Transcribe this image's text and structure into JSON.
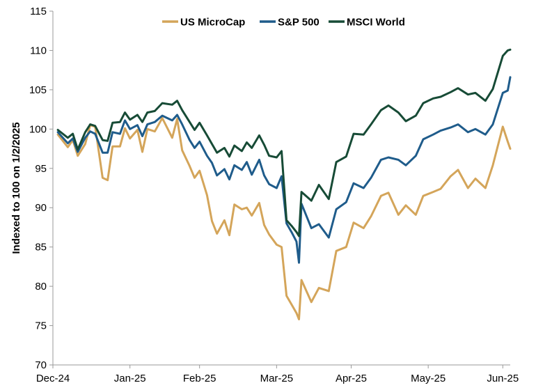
{
  "chart_data": {
    "type": "line",
    "title": "",
    "xlabel": "",
    "ylabel": "Indexed to 100 on 1/2/2025",
    "ylim": [
      70,
      115
    ],
    "yticks": [
      70,
      75,
      80,
      85,
      90,
      95,
      100,
      105,
      110,
      115
    ],
    "xlim": [
      "2024-12-31",
      "2025-07-03"
    ],
    "xtick_labels": [
      "Dec-24",
      "Jan-25",
      "Feb-25",
      "Mar-25",
      "Apr-25",
      "May-25",
      "Jun-25"
    ],
    "xtick_dates": [
      "2024-12-31",
      "2025-01-31",
      "2025-02-28",
      "2025-03-31",
      "2025-04-30",
      "2025-05-31",
      "2025-06-30"
    ],
    "grid": false,
    "legend_position": "top",
    "series": [
      {
        "name": "US MicroCap",
        "color": "#D4A55A",
        "x": [
          "2025-01-02",
          "2025-01-06",
          "2025-01-08",
          "2025-01-10",
          "2025-01-13",
          "2025-01-15",
          "2025-01-17",
          "2025-01-20",
          "2025-01-22",
          "2025-01-24",
          "2025-01-27",
          "2025-01-29",
          "2025-01-31",
          "2025-02-03",
          "2025-02-05",
          "2025-02-07",
          "2025-02-10",
          "2025-02-13",
          "2025-02-17",
          "2025-02-19",
          "2025-02-21",
          "2025-02-24",
          "2025-02-26",
          "2025-02-28",
          "2025-03-03",
          "2025-03-05",
          "2025-03-07",
          "2025-03-10",
          "2025-03-12",
          "2025-03-14",
          "2025-03-17",
          "2025-03-19",
          "2025-03-21",
          "2025-03-24",
          "2025-03-26",
          "2025-03-28",
          "2025-03-31",
          "2025-04-02",
          "2025-04-04",
          "2025-04-06",
          "2025-04-08",
          "2025-04-09",
          "2025-04-10",
          "2025-04-14",
          "2025-04-17",
          "2025-04-21",
          "2025-04-24",
          "2025-04-28",
          "2025-05-01",
          "2025-05-05",
          "2025-05-08",
          "2025-05-12",
          "2025-05-15",
          "2025-05-19",
          "2025-05-22",
          "2025-05-26",
          "2025-05-29",
          "2025-06-02",
          "2025-06-05",
          "2025-06-09",
          "2025-06-12",
          "2025-06-16",
          "2025-06-19",
          "2025-06-23",
          "2025-06-26",
          "2025-06-30",
          "2025-07-02",
          "2025-07-03"
        ],
        "values": [
          99.3,
          97.7,
          98.6,
          96.6,
          98.1,
          100.5,
          100.3,
          93.8,
          93.5,
          97.8,
          97.8,
          100.1,
          98.8,
          99.9,
          97.1,
          100.0,
          99.7,
          101.4,
          98.9,
          101.3,
          97.3,
          95.3,
          93.8,
          94.7,
          91.6,
          88.3,
          86.7,
          88.4,
          86.5,
          90.4,
          89.8,
          90.0,
          89.0,
          90.6,
          87.8,
          86.6,
          85.3,
          85.0,
          78.8,
          77.7,
          76.6,
          75.8,
          80.8,
          78.0,
          79.8,
          79.4,
          84.5,
          85.0,
          88.1,
          87.4,
          88.9,
          91.5,
          91.9,
          89.1,
          90.3,
          89.1,
          91.5,
          92.0,
          92.4,
          94.0,
          94.8,
          92.5,
          93.7,
          92.5,
          95.4,
          100.3,
          98.4,
          97.5
        ]
      },
      {
        "name": "S&P 500",
        "color": "#1F5C8B",
        "x": [
          "2025-01-02",
          "2025-01-06",
          "2025-01-08",
          "2025-01-10",
          "2025-01-13",
          "2025-01-15",
          "2025-01-17",
          "2025-01-20",
          "2025-01-22",
          "2025-01-24",
          "2025-01-27",
          "2025-01-29",
          "2025-01-31",
          "2025-02-03",
          "2025-02-05",
          "2025-02-07",
          "2025-02-10",
          "2025-02-13",
          "2025-02-17",
          "2025-02-19",
          "2025-02-21",
          "2025-02-24",
          "2025-02-26",
          "2025-02-28",
          "2025-03-03",
          "2025-03-05",
          "2025-03-07",
          "2025-03-10",
          "2025-03-12",
          "2025-03-14",
          "2025-03-17",
          "2025-03-19",
          "2025-03-21",
          "2025-03-24",
          "2025-03-26",
          "2025-03-28",
          "2025-03-31",
          "2025-04-02",
          "2025-04-04",
          "2025-04-06",
          "2025-04-08",
          "2025-04-09",
          "2025-04-10",
          "2025-04-14",
          "2025-04-17",
          "2025-04-21",
          "2025-04-24",
          "2025-04-28",
          "2025-05-01",
          "2025-05-05",
          "2025-05-08",
          "2025-05-12",
          "2025-05-15",
          "2025-05-19",
          "2025-05-22",
          "2025-05-26",
          "2025-05-29",
          "2025-06-02",
          "2025-06-05",
          "2025-06-09",
          "2025-06-12",
          "2025-06-16",
          "2025-06-19",
          "2025-06-23",
          "2025-06-26",
          "2025-06-30",
          "2025-07-02",
          "2025-07-03"
        ],
        "values": [
          99.6,
          98.2,
          98.8,
          97.1,
          98.9,
          99.7,
          99.4,
          97.0,
          97.0,
          99.6,
          99.4,
          101.1,
          100.0,
          100.5,
          99.1,
          100.6,
          100.9,
          101.7,
          101.1,
          101.8,
          100.6,
          98.6,
          97.6,
          98.4,
          96.6,
          95.7,
          94.1,
          94.9,
          93.6,
          95.4,
          94.8,
          95.8,
          94.2,
          96.1,
          94.1,
          93.0,
          92.5,
          94.0,
          88.0,
          86.9,
          85.7,
          83.0,
          90.5,
          87.4,
          87.9,
          86.2,
          89.8,
          90.7,
          93.1,
          92.5,
          93.8,
          96.1,
          96.4,
          96.1,
          95.4,
          96.6,
          98.7,
          99.3,
          99.8,
          100.2,
          100.6,
          99.6,
          100.0,
          99.3,
          100.6,
          104.6,
          104.9,
          106.6
        ]
      },
      {
        "name": "MSCI World",
        "color": "#174B36",
        "x": [
          "2025-01-02",
          "2025-01-06",
          "2025-01-08",
          "2025-01-10",
          "2025-01-13",
          "2025-01-15",
          "2025-01-17",
          "2025-01-20",
          "2025-01-22",
          "2025-01-24",
          "2025-01-27",
          "2025-01-29",
          "2025-01-31",
          "2025-02-03",
          "2025-02-05",
          "2025-02-07",
          "2025-02-10",
          "2025-02-13",
          "2025-02-17",
          "2025-02-19",
          "2025-02-21",
          "2025-02-24",
          "2025-02-26",
          "2025-02-28",
          "2025-03-03",
          "2025-03-05",
          "2025-03-07",
          "2025-03-10",
          "2025-03-12",
          "2025-03-14",
          "2025-03-17",
          "2025-03-19",
          "2025-03-21",
          "2025-03-24",
          "2025-03-26",
          "2025-03-28",
          "2025-03-31",
          "2025-04-02",
          "2025-04-04",
          "2025-04-06",
          "2025-04-08",
          "2025-04-09",
          "2025-04-10",
          "2025-04-14",
          "2025-04-17",
          "2025-04-21",
          "2025-04-24",
          "2025-04-28",
          "2025-05-01",
          "2025-05-05",
          "2025-05-08",
          "2025-05-12",
          "2025-05-15",
          "2025-05-19",
          "2025-05-22",
          "2025-05-26",
          "2025-05-29",
          "2025-06-02",
          "2025-06-05",
          "2025-06-09",
          "2025-06-12",
          "2025-06-16",
          "2025-06-19",
          "2025-06-23",
          "2025-06-26",
          "2025-06-30",
          "2025-07-02",
          "2025-07-03"
        ],
        "values": [
          99.9,
          98.9,
          99.4,
          97.4,
          99.6,
          100.6,
          100.4,
          98.6,
          98.5,
          100.8,
          100.9,
          102.1,
          101.2,
          101.8,
          100.9,
          102.1,
          102.3,
          103.3,
          103.1,
          103.6,
          102.4,
          100.9,
          99.9,
          100.8,
          99.2,
          98.1,
          97.0,
          97.6,
          96.5,
          97.9,
          97.2,
          98.3,
          97.6,
          99.2,
          98.0,
          96.6,
          96.4,
          97.2,
          88.4,
          87.7,
          86.9,
          86.4,
          92.0,
          90.9,
          92.9,
          91.1,
          95.8,
          96.5,
          99.4,
          99.3,
          100.6,
          102.4,
          103.0,
          102.1,
          101.0,
          101.7,
          103.3,
          103.9,
          104.1,
          104.7,
          105.2,
          104.4,
          104.6,
          103.6,
          105.1,
          109.3,
          110.0,
          110.1
        ]
      }
    ]
  }
}
